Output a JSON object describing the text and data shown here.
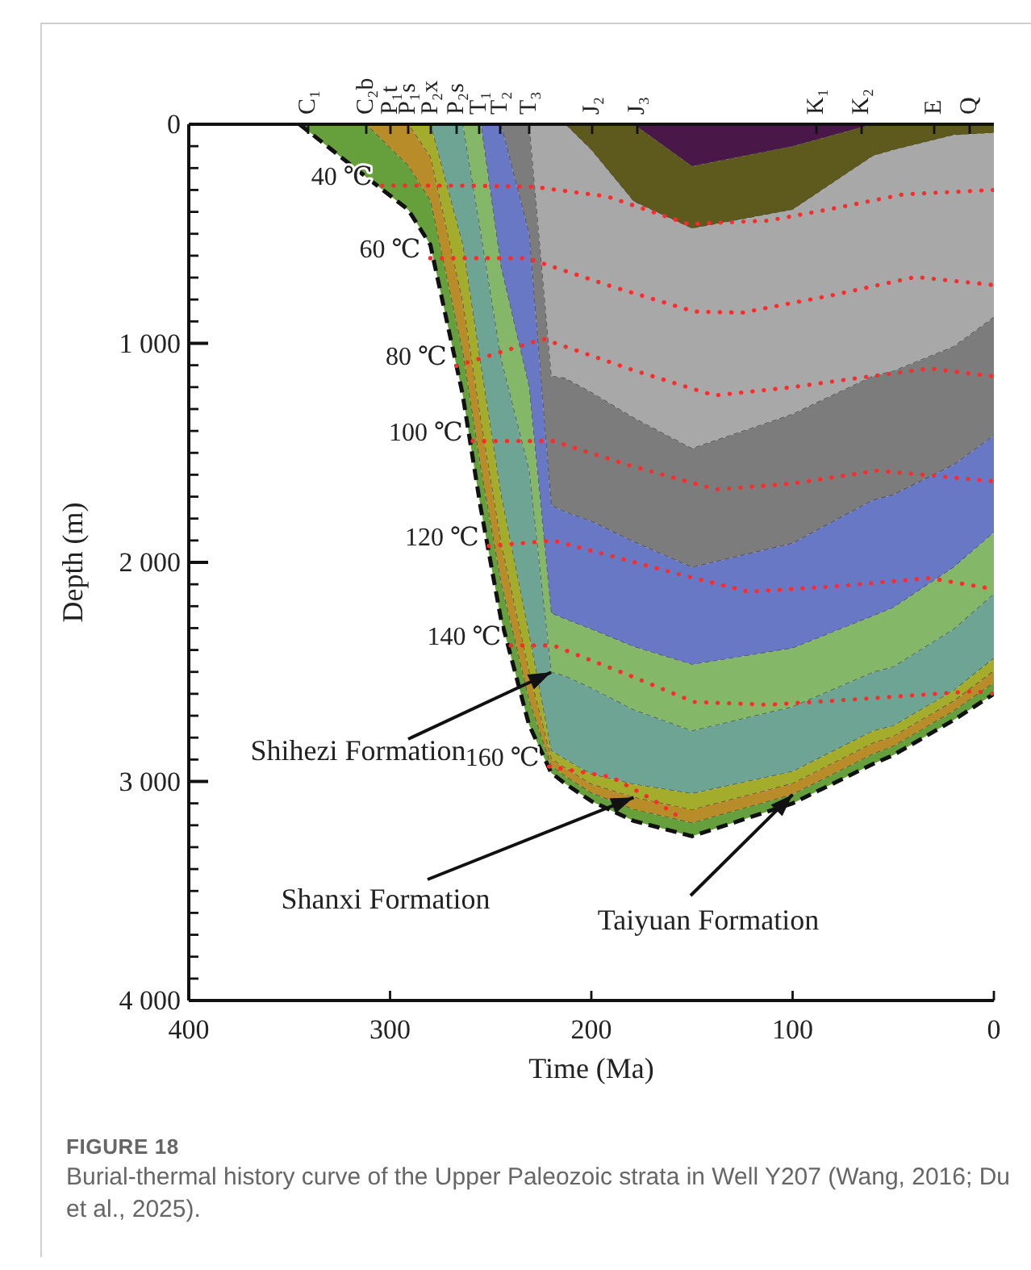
{
  "chart_data": {
    "type": "area",
    "stacked": true,
    "title": "FIGURE 18",
    "subtitle": "Burial-thermal history curve of the Upper Paleozoic strata in Well Y207 (Wang, 2016; Du et al., 2025).",
    "xlabel": "Time (Ma)",
    "ylabel": "Depth (m)",
    "marker": "none",
    "x": [
      345,
      312,
      291,
      280,
      264,
      255,
      245,
      231,
      220,
      213,
      200,
      179,
      150,
      100,
      60,
      50,
      20,
      0
    ],
    "xlim": [
      400,
      0
    ],
    "xticks": [
      400,
      300,
      200,
      100,
      0
    ],
    "ylim": [
      4000,
      0
    ],
    "yticks": [
      0,
      {
        "value": 100,
        "label": null
      },
      {
        "value": 200,
        "label": null
      },
      {
        "value": 300,
        "label": null
      },
      {
        "value": 400,
        "label": null
      },
      {
        "value": 500,
        "label": null
      },
      {
        "value": 600,
        "label": null
      },
      {
        "value": 700,
        "label": null
      },
      {
        "value": 800,
        "label": null
      },
      {
        "value": 900,
        "label": null
      },
      {
        "value": 1000,
        "label": "1 000"
      },
      {
        "value": 1100,
        "label": null
      },
      {
        "value": 1200,
        "label": null
      },
      {
        "value": 1300,
        "label": null
      },
      {
        "value": 1400,
        "label": null
      },
      {
        "value": 1500,
        "label": null
      },
      {
        "value": 1600,
        "label": null
      },
      {
        "value": 1700,
        "label": null
      },
      {
        "value": 1800,
        "label": null
      },
      {
        "value": 1900,
        "label": null
      },
      {
        "value": 2000,
        "label": "2 000"
      },
      {
        "value": 2100,
        "label": null
      },
      {
        "value": 2200,
        "label": null
      },
      {
        "value": 2300,
        "label": null
      },
      {
        "value": 2400,
        "label": null
      },
      {
        "value": 2500,
        "label": null
      },
      {
        "value": 2600,
        "label": null
      },
      {
        "value": 2700,
        "label": null
      },
      {
        "value": 2800,
        "label": null
      },
      {
        "value": 2900,
        "label": null
      },
      {
        "value": 3000,
        "label": "3 000"
      },
      {
        "value": 3100,
        "label": null
      },
      {
        "value": 3200,
        "label": null
      },
      {
        "value": 3300,
        "label": null
      },
      {
        "value": 3400,
        "label": null
      },
      {
        "value": 3500,
        "label": null
      },
      {
        "value": 3600,
        "label": null
      },
      {
        "value": 3700,
        "label": null
      },
      {
        "value": 3800,
        "label": null
      },
      {
        "value": 3900,
        "label": null
      },
      {
        "value": 4000,
        "label": "4 000"
      }
    ],
    "series": [
      {
        "color": "#4a1848",
        "values": [
          0,
          0,
          0,
          0,
          0,
          0,
          0,
          0,
          0,
          0,
          0,
          0,
          192,
          101,
          0,
          0,
          0,
          0
        ]
      },
      {
        "color": "#5e5a1e",
        "values": [
          0,
          0,
          0,
          0,
          0,
          0,
          0,
          0,
          0,
          0,
          118,
          353,
          284,
          289,
          145,
          118,
          50,
          40
        ]
      },
      {
        "color": "#a8a8a8",
        "values": [
          0,
          0,
          0,
          0,
          0,
          0,
          0,
          0,
          1150,
          1160,
          1107,
          988,
          1005,
          934,
          1005,
          1009,
          966,
          842
        ]
      },
      {
        "color": "#7c7c7c",
        "values": [
          0,
          0,
          0,
          0,
          0,
          0,
          0,
          500,
          590,
          610,
          588,
          565,
          542,
          589,
          566,
          565,
          539,
          540
        ]
      },
      {
        "color": "#6878c4",
        "values": [
          0,
          0,
          0,
          0,
          0,
          0,
          650,
          700,
          492,
          490,
          493,
          479,
          444,
          479,
          529,
          515,
          468,
          442
        ]
      },
      {
        "color": "#84b868",
        "values": [
          0,
          0,
          0,
          0,
          0,
          500,
          420,
          380,
          270,
          260,
          269,
          289,
          303,
          268,
          257,
          271,
          283,
          281
        ]
      },
      {
        "color": "#6ea494",
        "values": [
          0,
          0,
          0,
          0,
          550,
          600,
          620,
          750,
          358,
          380,
          393,
          339,
          286,
          295,
          268,
          269,
          280,
          293
        ]
      },
      {
        "color": "#a4ac2c",
        "values": [
          0,
          0,
          0,
          150,
          260,
          250,
          220,
          170,
          36,
          40,
          45,
          60,
          74,
          55,
          55,
          48,
          48,
          58
        ]
      },
      {
        "color": "#b88c28",
        "values": [
          0,
          0,
          190,
          200,
          230,
          220,
          180,
          130,
          34,
          37,
          40,
          55,
          60,
          50,
          50,
          45,
          45,
          54
        ]
      },
      {
        "color": "#66a03c",
        "values": [
          0,
          240,
          200,
          200,
          190,
          180,
          164,
          110,
          30,
          33,
          37,
          52,
          60,
          40,
          45,
          40,
          41,
          50
        ]
      },
      {
        "type": "line",
        "name": "40 ℃",
        "color": "#ff2a2a",
        "line_style": "dotted",
        "x": [
          304,
          260,
          229,
          192,
          152,
          112,
          80,
          45,
          0
        ],
        "values": [
          280,
          280,
          285,
          330,
          455,
          440,
          385,
          320,
          300
        ]
      },
      {
        "type": "line",
        "name": "60 ℃",
        "color": "#ff2a2a",
        "line_style": "dotted",
        "x": [
          280,
          232,
          190,
          149,
          125,
          80,
          39,
          0
        ],
        "values": [
          611,
          611,
          740,
          855,
          860,
          780,
          697,
          734
        ]
      },
      {
        "type": "line",
        "name": "80 ℃",
        "color": "#ff2a2a",
        "line_style": "dotted",
        "x": [
          267,
          224,
          180,
          139,
          100,
          72,
          32,
          0
        ],
        "values": [
          1103,
          980,
          1120,
          1238,
          1200,
          1164,
          1115,
          1151
        ]
      },
      {
        "type": "line",
        "name": "100 ℃",
        "color": "#ff2a2a",
        "line_style": "dotted",
        "x": [
          259,
          219,
          180,
          138,
          100,
          58,
          0
        ],
        "values": [
          1446,
          1446,
          1560,
          1667,
          1640,
          1581,
          1630
        ]
      },
      {
        "type": "line",
        "name": "120 ℃",
        "color": "#ff2a2a",
        "line_style": "dotted",
        "x": [
          251,
          219,
          154,
          122,
          80,
          32,
          0
        ],
        "values": [
          1925,
          1900,
          2060,
          2134,
          2110,
          2072,
          2122
        ]
      },
      {
        "type": "line",
        "name": "140 ℃",
        "color": "#ff2a2a",
        "line_style": "dotted",
        "x": [
          240,
          219,
          180,
          149,
          112,
          60,
          10,
          0
        ],
        "values": [
          2379,
          2379,
          2520,
          2637,
          2650,
          2620,
          2588,
          2600
        ]
      },
      {
        "type": "line",
        "name": "160 ℃",
        "color": "#ff2a2a",
        "line_style": "dotted",
        "x": [
          221,
          190,
          170,
          155
        ],
        "values": [
          2932,
          2980,
          3080,
          3170
        ]
      }
    ],
    "annotations": [
      {
        "text": "Shihezi Formation",
        "x": 220,
        "y": 2502
      },
      {
        "text": "Shanxi Formation",
        "x": 179,
        "y": 3073
      },
      {
        "text": "Taiyuan Formation",
        "x": 100,
        "y": 3060
      },
      "C₁",
      "C₂b",
      "P₁t",
      "P₁s",
      "P₂x",
      "P₂s",
      "T₁",
      "T₂",
      "T₃",
      "J₂",
      "J₃",
      "K₁",
      "K₂",
      "E",
      "Q"
    ]
  }
}
